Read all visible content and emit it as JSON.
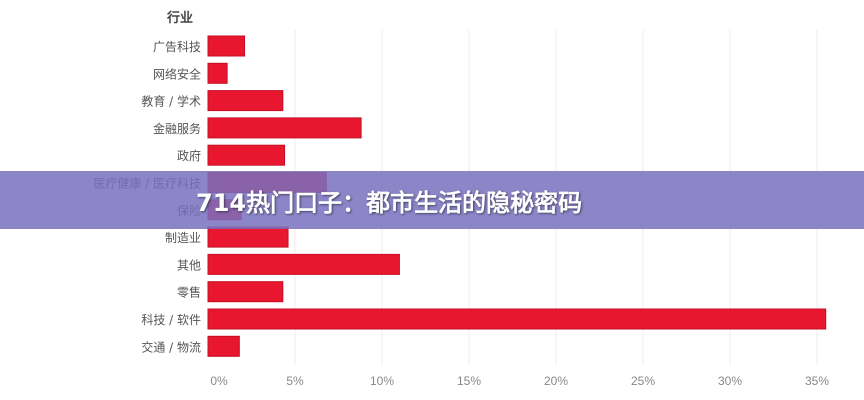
{
  "banner": {
    "title": "714热门口子：都市生活的隐秘密码"
  },
  "chart_data": {
    "type": "bar",
    "orientation": "horizontal",
    "category_header": "行业",
    "categories": [
      "广告科技",
      "网络安全",
      "教育 / 学术",
      "金融服务",
      "政府",
      "医疗健康 / 医疗科技",
      "保险",
      "制造业",
      "其他",
      "零售",
      "科技 / 软件",
      "交通 / 物流"
    ],
    "values": [
      2.1,
      1.1,
      4.3,
      8.8,
      4.4,
      6.8,
      1.9,
      4.6,
      11.0,
      4.3,
      35.5,
      1.8
    ],
    "xlim": [
      0,
      35
    ],
    "xticks": [
      "0%",
      "5%",
      "10%",
      "15%",
      "20%",
      "25%",
      "30%",
      "35%"
    ],
    "grid": true,
    "bar_color": "#e8172f"
  }
}
